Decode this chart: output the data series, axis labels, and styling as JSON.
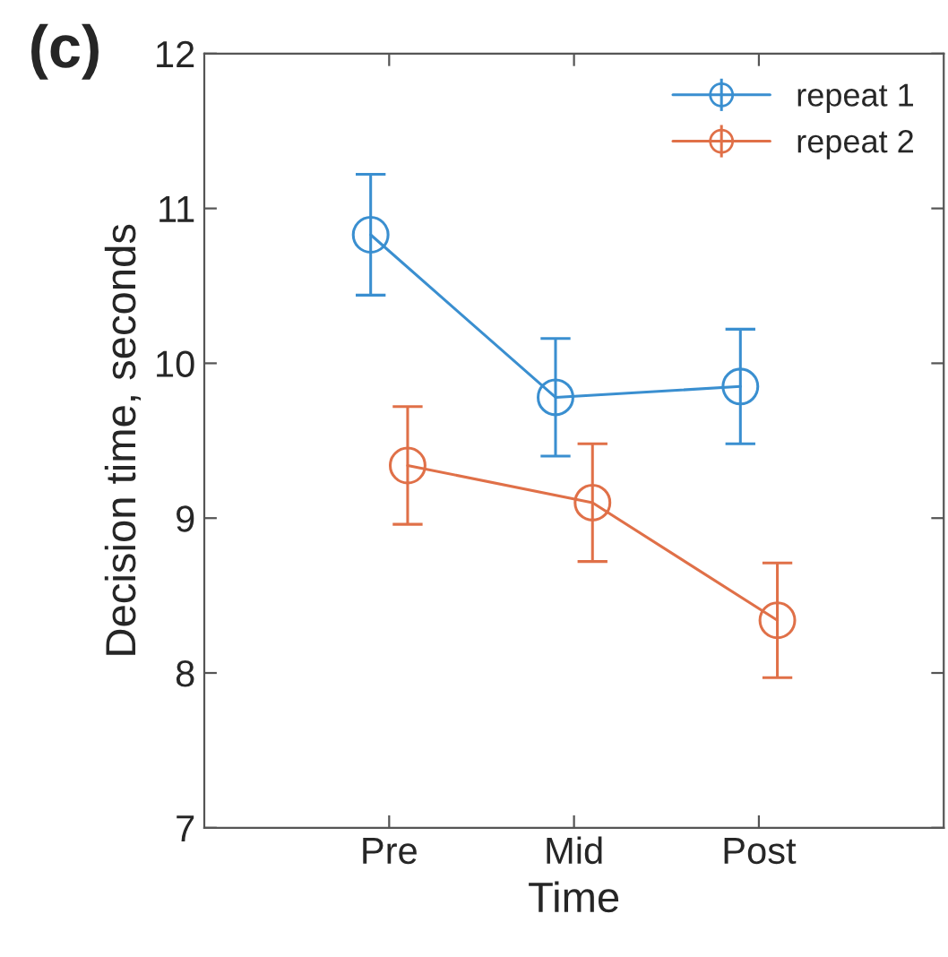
{
  "chart_data": {
    "type": "line",
    "xlabel": "Time",
    "ylabel": "Decision time, seconds",
    "annotations": [
      "(c)"
    ],
    "categories": [
      "Pre",
      "Mid",
      "Post"
    ],
    "series": [
      {
        "name": "repeat 1",
        "color": "#3a8fd0",
        "values": [
          10.83,
          9.78,
          9.85
        ],
        "errors": [
          0.39,
          0.38,
          0.37
        ]
      },
      {
        "name": "repeat 2",
        "color": "#e07048",
        "values": [
          9.34,
          9.1,
          8.34
        ],
        "errors": [
          0.38,
          0.38,
          0.37
        ]
      }
    ],
    "ylim": [
      7,
      12
    ],
    "yticks": [
      7,
      8,
      9,
      10,
      11,
      12
    ],
    "marker": "circle",
    "line_style": "solid",
    "legend": "top right",
    "grid": false
  }
}
